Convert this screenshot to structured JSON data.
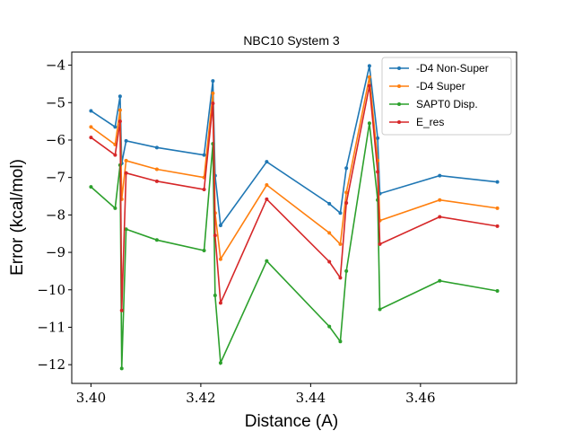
{
  "chart_data": {
    "type": "line",
    "title": "NBC10 System 3",
    "xlabel": "Distance (A)",
    "ylabel": "Error (kcal/mol)",
    "xlim": [
      3.3965,
      3.4775
    ],
    "ylim": [
      -12.5,
      -3.65
    ],
    "xticks": [
      3.4,
      3.42,
      3.44,
      3.46
    ],
    "xtick_labels": [
      "3.40",
      "3.42",
      "3.44",
      "3.46"
    ],
    "yticks": [
      -12,
      -11,
      -10,
      -9,
      -8,
      -7,
      -6,
      -5,
      -4
    ],
    "ytick_labels": [
      "−12",
      "−11",
      "−10",
      "−9",
      "−8",
      "−7",
      "−6",
      "−5",
      "−4"
    ],
    "grid": false,
    "legend_position": "top-right",
    "x": [
      3.4,
      3.4044,
      3.4053,
      3.4056,
      3.4064,
      3.412,
      3.4206,
      3.4222,
      3.4226,
      3.4236,
      3.432,
      3.4434,
      3.4454,
      3.4465,
      3.4507,
      3.4522,
      3.4526,
      3.4635,
      3.474
    ],
    "series": [
      {
        "name": "-D4 Non-Super",
        "color": "#1f77b4",
        "values": [
          -5.22,
          -5.65,
          -4.83,
          -6.62,
          -6.02,
          -6.2,
          -6.4,
          -4.42,
          -6.95,
          -8.28,
          -6.58,
          -7.7,
          -7.95,
          -6.75,
          -4.02,
          -5.95,
          -7.43,
          -6.95,
          -7.12
        ]
      },
      {
        "name": "-D4 Super",
        "color": "#ff7f0e",
        "values": [
          -5.65,
          -6.12,
          -5.2,
          -7.58,
          -6.55,
          -6.78,
          -7.0,
          -4.75,
          -7.95,
          -9.18,
          -7.2,
          -8.48,
          -8.78,
          -7.4,
          -4.32,
          -6.55,
          -8.15,
          -7.6,
          -7.82
        ]
      },
      {
        "name": "SAPT0 Disp.",
        "color": "#2ca02c",
        "values": [
          -7.25,
          -7.82,
          -6.67,
          -12.1,
          -8.38,
          -8.67,
          -8.95,
          -6.1,
          -10.15,
          -11.95,
          -9.23,
          -10.98,
          -11.38,
          -9.5,
          -5.55,
          -7.6,
          -10.52,
          -9.76,
          -10.03
        ]
      },
      {
        "name": "E_res",
        "color": "#d62728",
        "values": [
          -5.93,
          -6.4,
          -5.5,
          -10.55,
          -6.88,
          -7.1,
          -7.32,
          -5.02,
          -8.55,
          -10.35,
          -7.58,
          -9.25,
          -9.68,
          -7.68,
          -4.55,
          -6.85,
          -8.78,
          -8.05,
          -8.3
        ]
      }
    ]
  }
}
